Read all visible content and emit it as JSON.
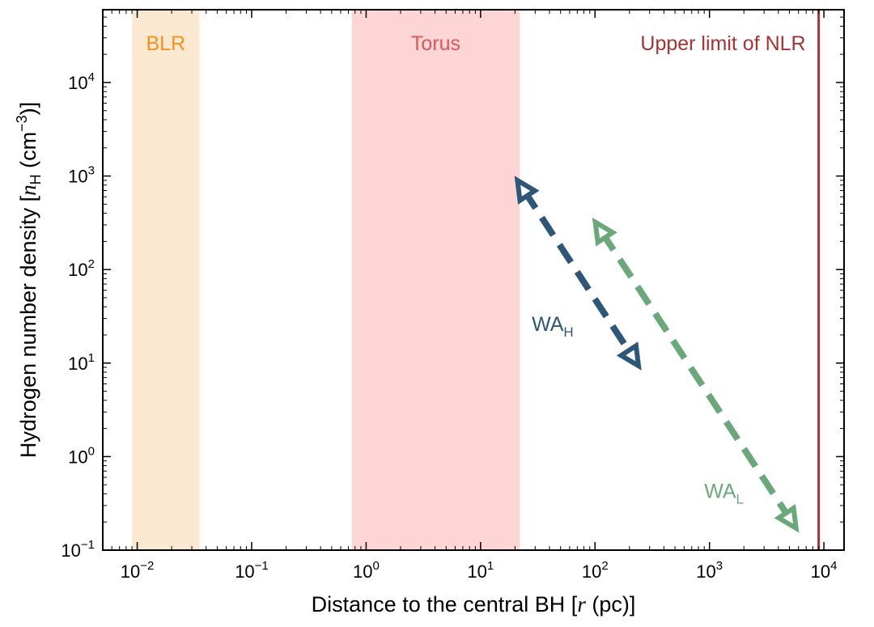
{
  "chart_data": {
    "type": "line",
    "xscale": "log",
    "yscale": "log",
    "xlim": [
      0.005,
      15000
    ],
    "ylim": [
      0.1,
      60000
    ],
    "xlabel": {
      "main": "Distance to the central BH [",
      "var": "r",
      "rest": " (pc)]"
    },
    "ylabel": {
      "main": "Hydrogen number density [",
      "var": "n",
      "sub": "H",
      "rest": " (cm",
      "sup": "−3",
      "end": ")]"
    },
    "x_ticks": [
      {
        "base": "10",
        "exp": "−2",
        "value": 0.01
      },
      {
        "base": "10",
        "exp": "−1",
        "value": 0.1
      },
      {
        "base": "10",
        "exp": "0",
        "value": 1
      },
      {
        "base": "10",
        "exp": "1",
        "value": 10
      },
      {
        "base": "10",
        "exp": "2",
        "value": 100
      },
      {
        "base": "10",
        "exp": "3",
        "value": 1000
      },
      {
        "base": "10",
        "exp": "4",
        "value": 10000
      }
    ],
    "y_ticks": [
      {
        "base": "10",
        "exp": "−1",
        "value": 0.1
      },
      {
        "base": "10",
        "exp": "0",
        "value": 1
      },
      {
        "base": "10",
        "exp": "1",
        "value": 10
      },
      {
        "base": "10",
        "exp": "2",
        "value": 100
      },
      {
        "base": "10",
        "exp": "3",
        "value": 1000
      },
      {
        "base": "10",
        "exp": "4",
        "value": 10000
      }
    ],
    "regions": [
      {
        "name": "BLR",
        "label": "BLR",
        "x_range": [
          0.009,
          0.035
        ],
        "fill": "#fbe8d0",
        "text_color": "#f5921e"
      },
      {
        "name": "Torus",
        "label": "Torus",
        "x_range": [
          0.75,
          22
        ],
        "fill": "#fed5d5",
        "text_color": "#d9575a"
      }
    ],
    "vlines": [
      {
        "name": "Upper limit of NLR",
        "label": "Upper limit of NLR",
        "x": 9000,
        "color": "#a83236"
      }
    ],
    "series": [
      {
        "name": "WA_H",
        "label_main": "WA",
        "label_sub": "H",
        "color": "#2e5676",
        "points": [
          {
            "x": 24,
            "y": 700
          },
          {
            "x": 210,
            "y": 12
          }
        ],
        "label_at": {
          "x": 28,
          "y": 22
        }
      },
      {
        "name": "WA_L",
        "label_main": "WA",
        "label_sub": "L",
        "color": "#6aa87c",
        "points": [
          {
            "x": 115,
            "y": 250
          },
          {
            "x": 5000,
            "y": 0.22
          }
        ],
        "label_at": {
          "x": 900,
          "y": 0.36
        }
      }
    ]
  }
}
